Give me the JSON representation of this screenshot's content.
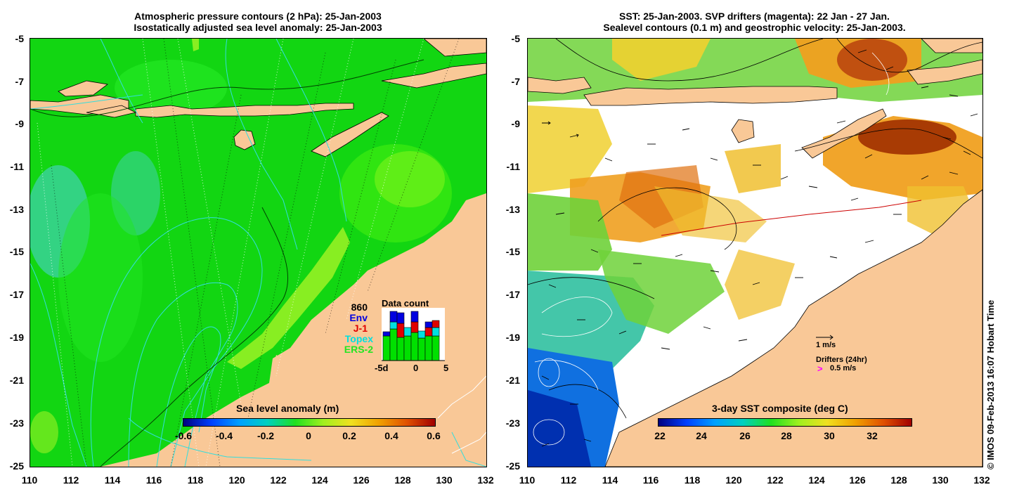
{
  "left_panel": {
    "title_line1": "Atmospheric pressure contours (2 hPa): 25-Jan-2003",
    "title_line2": "Isostatically adjusted sea level anomaly: 25-Jan-2003",
    "colorbar_title": "Sea level anomaly (m)",
    "colorbar_ticks": [
      "-0.6",
      "-0.4",
      "-0.2",
      "0",
      "0.2",
      "0.4",
      "0.6"
    ],
    "data_count": {
      "title": "Data count",
      "total": "860",
      "missions": [
        {
          "name": "Env",
          "color": "#0000e0"
        },
        {
          "name": "J-1",
          "color": "#e00000"
        },
        {
          "name": "Topex",
          "color": "#00e0e0"
        },
        {
          "name": "ERS-2",
          "color": "#00e000"
        }
      ],
      "x_ticks": [
        "-5d",
        "0",
        "5"
      ]
    }
  },
  "right_panel": {
    "title_line1": "SST: 25-Jan-2003. SVP drifters (magenta): 22 Jan - 27 Jan.",
    "title_line2": "Sealevel contours (0.1 m) and geostrophic velocity: 25-Jan-2003.",
    "colorbar_title": "3-day SST composite (deg C)",
    "colorbar_ticks": [
      "22",
      "24",
      "26",
      "28",
      "30",
      "32"
    ],
    "velocity_scale": "1 m/s",
    "drifters_title": "Drifters (24hr)",
    "drifters_marker": ">",
    "drifters_scale": "0.5 m/s"
  },
  "axes": {
    "lat_ticks": [
      "-5",
      "-7",
      "-9",
      "-11",
      "-13",
      "-15",
      "-17",
      "-19",
      "-21",
      "-23",
      "-25"
    ],
    "lon_ticks": [
      "110",
      "112",
      "114",
      "116",
      "118",
      "120",
      "122",
      "124",
      "126",
      "128",
      "130",
      "132"
    ]
  },
  "colors": {
    "land": "#f9c897",
    "sea_main": "#12d612",
    "sea_light": "#22e622",
    "sea_teal": "#3cd2a0",
    "positive_anomaly": "#88ee22",
    "contour_cyan": "#33dddd"
  },
  "credit": "© IMOS 09-Feb-2013 16:07 Hobart Time"
}
